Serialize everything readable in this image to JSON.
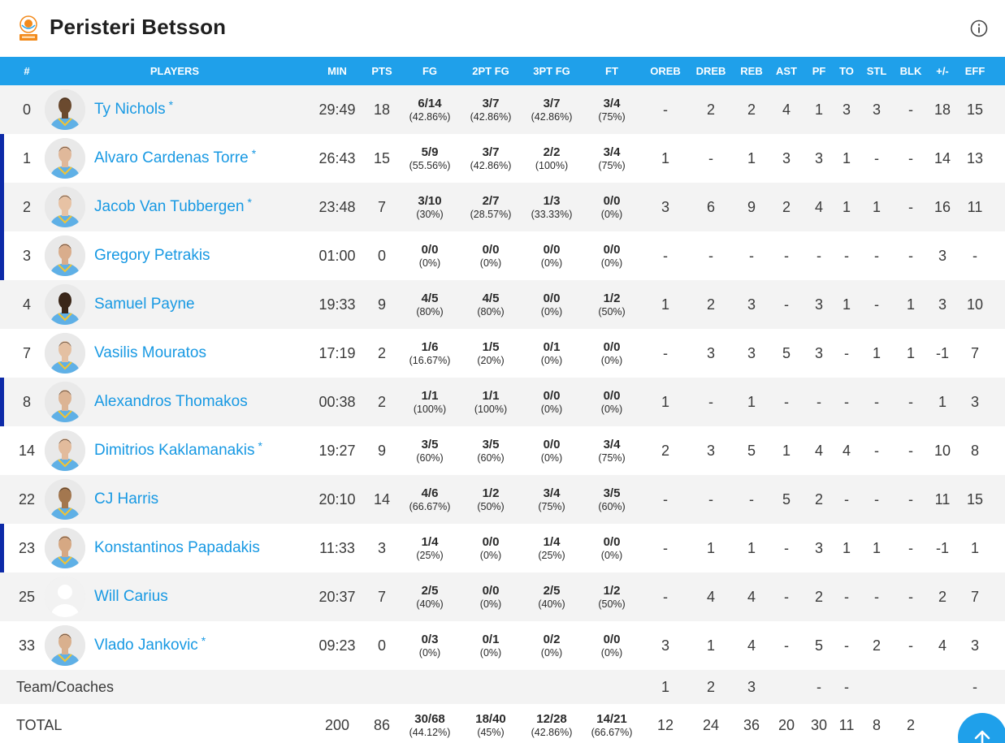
{
  "team": {
    "name": "Peristeri Betsson"
  },
  "headers": [
    "#",
    "PLAYERS",
    "MIN",
    "PTS",
    "FG",
    "2PT FG",
    "3PT FG",
    "FT",
    "OREB",
    "DREB",
    "REB",
    "AST",
    "PF",
    "TO",
    "STL",
    "BLK",
    "+/-",
    "EFF"
  ],
  "players": [
    {
      "no": "0",
      "name": "Ty Nichols",
      "starter": "*",
      "marker": false,
      "min": "29:49",
      "pts": "18",
      "fg": "6/14",
      "fg_pct": "(42.86%)",
      "fg2": "3/7",
      "fg2_pct": "(42.86%)",
      "fg3": "3/7",
      "fg3_pct": "(42.86%)",
      "ft": "3/4",
      "ft_pct": "(75%)",
      "oreb": "-",
      "dreb": "2",
      "reb": "2",
      "ast": "4",
      "pf": "1",
      "to": "3",
      "stl": "3",
      "blk": "-",
      "pm": "18",
      "eff": "15"
    },
    {
      "no": "1",
      "name": "Alvaro Cardenas Torre",
      "starter": "*",
      "marker": true,
      "min": "26:43",
      "pts": "15",
      "fg": "5/9",
      "fg_pct": "(55.56%)",
      "fg2": "3/7",
      "fg2_pct": "(42.86%)",
      "fg3": "2/2",
      "fg3_pct": "(100%)",
      "ft": "3/4",
      "ft_pct": "(75%)",
      "oreb": "1",
      "dreb": "-",
      "reb": "1",
      "ast": "3",
      "pf": "3",
      "to": "1",
      "stl": "-",
      "blk": "-",
      "pm": "14",
      "eff": "13"
    },
    {
      "no": "2",
      "name": "Jacob Van Tubbergen",
      "starter": "*",
      "marker": true,
      "min": "23:48",
      "pts": "7",
      "fg": "3/10",
      "fg_pct": "(30%)",
      "fg2": "2/7",
      "fg2_pct": "(28.57%)",
      "fg3": "1/3",
      "fg3_pct": "(33.33%)",
      "ft": "0/0",
      "ft_pct": "(0%)",
      "oreb": "3",
      "dreb": "6",
      "reb": "9",
      "ast": "2",
      "pf": "4",
      "to": "1",
      "stl": "1",
      "blk": "-",
      "pm": "16",
      "eff": "11"
    },
    {
      "no": "3",
      "name": "Gregory Petrakis",
      "starter": "",
      "marker": true,
      "min": "01:00",
      "pts": "0",
      "fg": "0/0",
      "fg_pct": "(0%)",
      "fg2": "0/0",
      "fg2_pct": "(0%)",
      "fg3": "0/0",
      "fg3_pct": "(0%)",
      "ft": "0/0",
      "ft_pct": "(0%)",
      "oreb": "-",
      "dreb": "-",
      "reb": "-",
      "ast": "-",
      "pf": "-",
      "to": "-",
      "stl": "-",
      "blk": "-",
      "pm": "3",
      "eff": "-"
    },
    {
      "no": "4",
      "name": "Samuel Payne",
      "starter": "",
      "marker": false,
      "min": "19:33",
      "pts": "9",
      "fg": "4/5",
      "fg_pct": "(80%)",
      "fg2": "4/5",
      "fg2_pct": "(80%)",
      "fg3": "0/0",
      "fg3_pct": "(0%)",
      "ft": "1/2",
      "ft_pct": "(50%)",
      "oreb": "1",
      "dreb": "2",
      "reb": "3",
      "ast": "-",
      "pf": "3",
      "to": "1",
      "stl": "-",
      "blk": "1",
      "pm": "3",
      "eff": "10"
    },
    {
      "no": "7",
      "name": "Vasilis Mouratos",
      "starter": "",
      "marker": false,
      "min": "17:19",
      "pts": "2",
      "fg": "1/6",
      "fg_pct": "(16.67%)",
      "fg2": "1/5",
      "fg2_pct": "(20%)",
      "fg3": "0/1",
      "fg3_pct": "(0%)",
      "ft": "0/0",
      "ft_pct": "(0%)",
      "oreb": "-",
      "dreb": "3",
      "reb": "3",
      "ast": "5",
      "pf": "3",
      "to": "-",
      "stl": "1",
      "blk": "1",
      "pm": "-1",
      "eff": "7"
    },
    {
      "no": "8",
      "name": "Alexandros Thomakos",
      "starter": "",
      "marker": true,
      "min": "00:38",
      "pts": "2",
      "fg": "1/1",
      "fg_pct": "(100%)",
      "fg2": "1/1",
      "fg2_pct": "(100%)",
      "fg3": "0/0",
      "fg3_pct": "(0%)",
      "ft": "0/0",
      "ft_pct": "(0%)",
      "oreb": "1",
      "dreb": "-",
      "reb": "1",
      "ast": "-",
      "pf": "-",
      "to": "-",
      "stl": "-",
      "blk": "-",
      "pm": "1",
      "eff": "3"
    },
    {
      "no": "14",
      "name": "Dimitrios Kaklamanakis",
      "starter": "*",
      "marker": false,
      "min": "19:27",
      "pts": "9",
      "fg": "3/5",
      "fg_pct": "(60%)",
      "fg2": "3/5",
      "fg2_pct": "(60%)",
      "fg3": "0/0",
      "fg3_pct": "(0%)",
      "ft": "3/4",
      "ft_pct": "(75%)",
      "oreb": "2",
      "dreb": "3",
      "reb": "5",
      "ast": "1",
      "pf": "4",
      "to": "4",
      "stl": "-",
      "blk": "-",
      "pm": "10",
      "eff": "8"
    },
    {
      "no": "22",
      "name": "CJ Harris",
      "starter": "",
      "marker": false,
      "min": "20:10",
      "pts": "14",
      "fg": "4/6",
      "fg_pct": "(66.67%)",
      "fg2": "1/2",
      "fg2_pct": "(50%)",
      "fg3": "3/4",
      "fg3_pct": "(75%)",
      "ft": "3/5",
      "ft_pct": "(60%)",
      "oreb": "-",
      "dreb": "-",
      "reb": "-",
      "ast": "5",
      "pf": "2",
      "to": "-",
      "stl": "-",
      "blk": "-",
      "pm": "11",
      "eff": "15"
    },
    {
      "no": "23",
      "name": "Konstantinos Papadakis",
      "starter": "",
      "marker": true,
      "min": "11:33",
      "pts": "3",
      "fg": "1/4",
      "fg_pct": "(25%)",
      "fg2": "0/0",
      "fg2_pct": "(0%)",
      "fg3": "1/4",
      "fg3_pct": "(25%)",
      "ft": "0/0",
      "ft_pct": "(0%)",
      "oreb": "-",
      "dreb": "1",
      "reb": "1",
      "ast": "-",
      "pf": "3",
      "to": "1",
      "stl": "1",
      "blk": "-",
      "pm": "-1",
      "eff": "1"
    },
    {
      "no": "25",
      "name": "Will Carius",
      "starter": "",
      "marker": false,
      "min": "20:37",
      "pts": "7",
      "fg": "2/5",
      "fg_pct": "(40%)",
      "fg2": "0/0",
      "fg2_pct": "(0%)",
      "fg3": "2/5",
      "fg3_pct": "(40%)",
      "ft": "1/2",
      "ft_pct": "(50%)",
      "oreb": "-",
      "dreb": "4",
      "reb": "4",
      "ast": "-",
      "pf": "2",
      "to": "-",
      "stl": "-",
      "blk": "-",
      "pm": "2",
      "eff": "7"
    },
    {
      "no": "33",
      "name": "Vlado Jankovic",
      "starter": "*",
      "marker": false,
      "min": "09:23",
      "pts": "0",
      "fg": "0/3",
      "fg_pct": "(0%)",
      "fg2": "0/1",
      "fg2_pct": "(0%)",
      "fg3": "0/2",
      "fg3_pct": "(0%)",
      "ft": "0/0",
      "ft_pct": "(0%)",
      "oreb": "3",
      "dreb": "1",
      "reb": "4",
      "ast": "-",
      "pf": "5",
      "to": "-",
      "stl": "2",
      "blk": "-",
      "pm": "4",
      "eff": "3"
    }
  ],
  "team_coaches": {
    "label": "Team/Coaches",
    "oreb": "1",
    "dreb": "2",
    "reb": "3",
    "pf": "-",
    "to": "-",
    "eff": "-"
  },
  "totals": {
    "label": "TOTAL",
    "min": "200",
    "pts": "86",
    "fg": "30/68",
    "fg_pct": "(44.12%)",
    "fg2": "18/40",
    "fg2_pct": "(45%)",
    "fg3": "12/28",
    "fg3_pct": "(42.86%)",
    "ft": "14/21",
    "ft_pct": "(66.67%)",
    "oreb": "12",
    "dreb": "24",
    "reb": "36",
    "ast": "20",
    "pf": "30",
    "to": "11",
    "stl": "8",
    "blk": "2"
  },
  "colors": {
    "header_bg": "#1fa0ea",
    "link": "#1899e3",
    "marker": "#0d2aa8",
    "shade": "#f3f3f3"
  },
  "icons": {
    "info": "info-icon",
    "scroll_top": "arrow-up-icon",
    "logo": "team-logo-icon"
  }
}
